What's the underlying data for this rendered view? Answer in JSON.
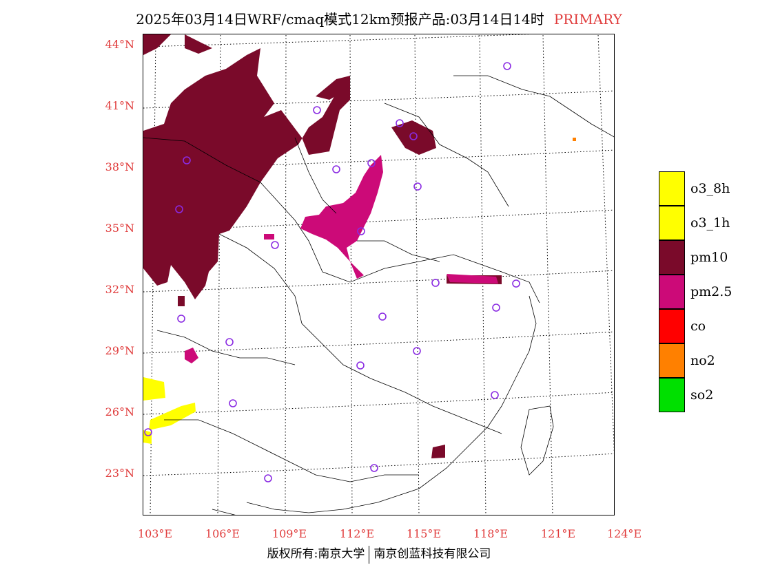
{
  "title": {
    "main": "2025年03月14日WRF/cmaq模式12km预报产品:03月14日14时",
    "mode": "PRIMARY"
  },
  "axes": {
    "lat_labels": [
      "44°N",
      "41°N",
      "38°N",
      "35°N",
      "32°N",
      "29°N",
      "26°N",
      "23°N"
    ],
    "lon_labels": [
      "103°E",
      "106°E",
      "109°E",
      "112°E",
      "115°E",
      "118°E",
      "121°E",
      "124°E"
    ]
  },
  "legend": {
    "items": [
      {
        "label": "o3_8h",
        "color": "#ffff00"
      },
      {
        "label": "o3_1h",
        "color": "#ffff00"
      },
      {
        "label": "pm10",
        "color": "#7a0a2a"
      },
      {
        "label": "pm2.5",
        "color": "#cc0a78"
      },
      {
        "label": "co",
        "color": "#ff0000"
      },
      {
        "label": "no2",
        "color": "#ff8000"
      },
      {
        "label": "so2",
        "color": "#00e000"
      }
    ]
  },
  "footer": {
    "left": "版权所有:南京大学",
    "right": "南京创蓝科技有限公司"
  },
  "colors": {
    "label_red": "#e03c3c",
    "station_marker": "#8a2be2"
  }
}
